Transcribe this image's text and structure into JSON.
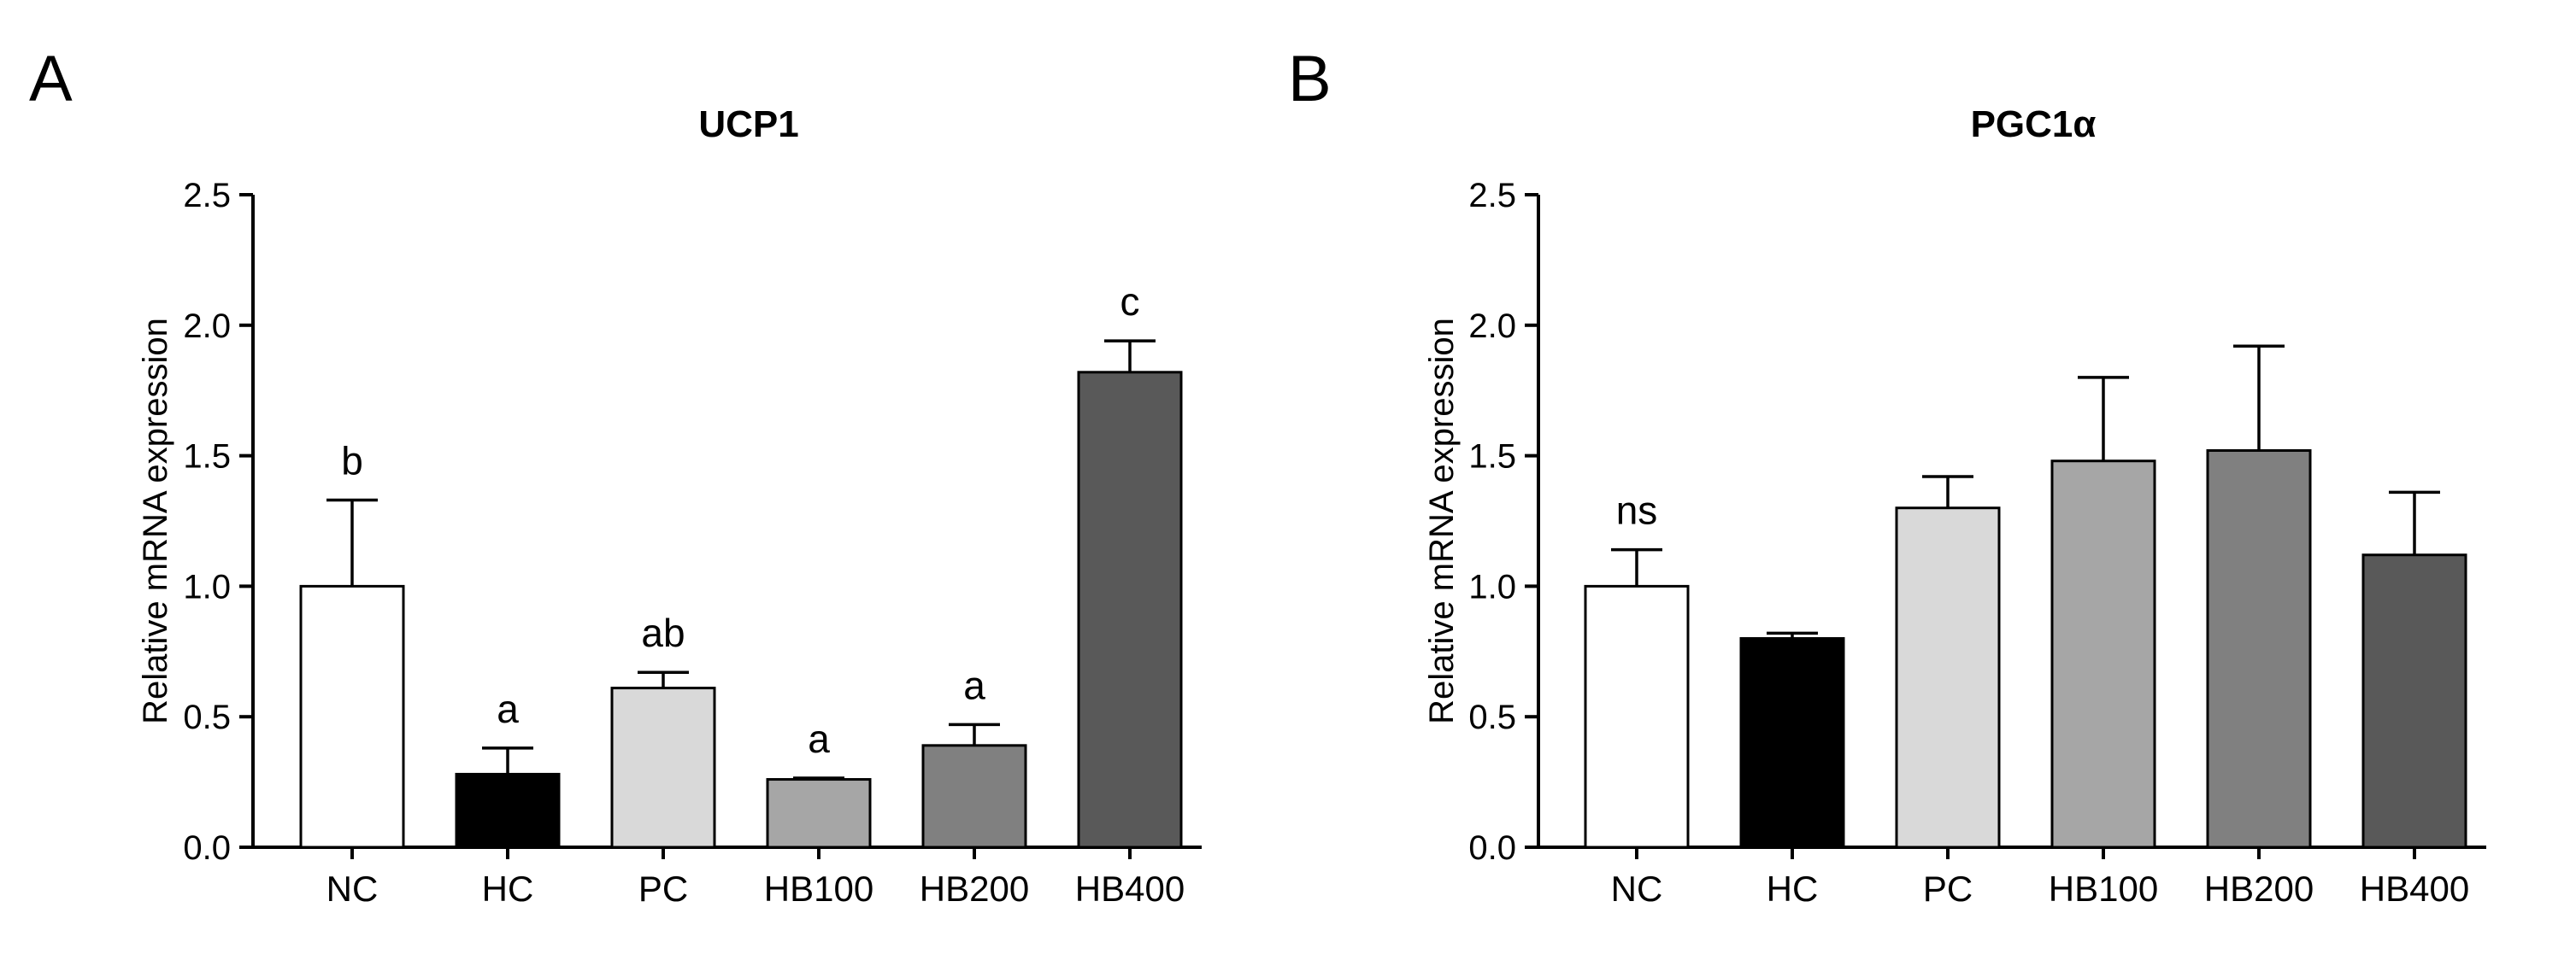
{
  "figure_panels": [
    "A",
    "B"
  ],
  "chart_data": [
    {
      "panel": "A",
      "type": "bar",
      "title": "UCP1",
      "ylabel": "Relative mRNA expression",
      "xlabel": "",
      "ylim": [
        0,
        2.5
      ],
      "yticks": [
        "0.0",
        "0.5",
        "1.0",
        "1.5",
        "2.0",
        "2.5"
      ],
      "categories": [
        "NC",
        "HC",
        "PC",
        "HB100",
        "HB200",
        "HB400"
      ],
      "values": [
        1.0,
        0.28,
        0.61,
        0.26,
        0.39,
        1.82
      ],
      "errors": [
        0.33,
        0.1,
        0.06,
        0.005,
        0.08,
        0.12
      ],
      "significance": [
        "b",
        "a",
        "ab",
        "a",
        "a",
        "c"
      ],
      "colors": [
        "#ffffff",
        "#000000",
        "#d9d9d9",
        "#a6a6a6",
        "#808080",
        "#595959"
      ]
    },
    {
      "panel": "B",
      "type": "bar",
      "title": "PGC1α",
      "ylabel": "Relative mRNA expression",
      "xlabel": "",
      "ylim": [
        0,
        2.5
      ],
      "yticks": [
        "0.0",
        "0.5",
        "1.0",
        "1.5",
        "2.0",
        "2.5"
      ],
      "categories": [
        "NC",
        "HC",
        "PC",
        "HB100",
        "HB200",
        "HB400"
      ],
      "values": [
        1.0,
        0.8,
        1.3,
        1.48,
        1.52,
        1.12
      ],
      "errors": [
        0.14,
        0.02,
        0.12,
        0.32,
        0.4,
        0.24
      ],
      "significance": [
        "ns",
        "",
        "",
        "",
        "",
        ""
      ],
      "colors": [
        "#ffffff",
        "#000000",
        "#d9d9d9",
        "#a6a6a6",
        "#808080",
        "#595959"
      ]
    }
  ]
}
